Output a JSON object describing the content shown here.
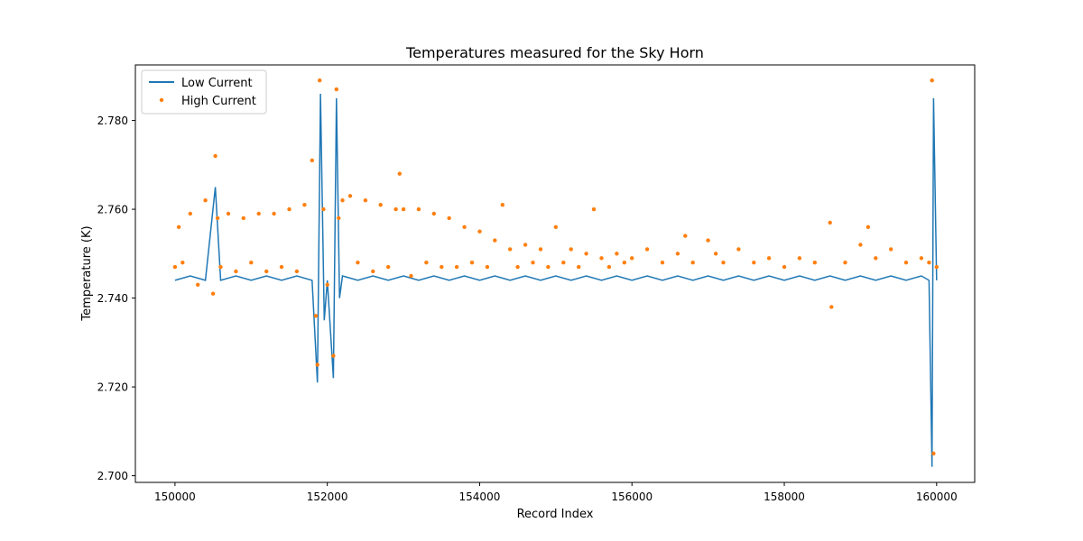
{
  "chart_data": {
    "type": "line",
    "title": "Temperatures measured for the Sky Horn",
    "xlabel": "Record Index",
    "ylabel": "Temperature (K)",
    "xlim": [
      149480,
      160500
    ],
    "ylim": [
      2.6985,
      2.7925
    ],
    "x_ticks": [
      150000,
      152000,
      154000,
      156000,
      158000,
      160000
    ],
    "x_tick_labels": [
      "150000",
      "152000",
      "154000",
      "156000",
      "158000",
      "160000"
    ],
    "y_ticks": [
      2.7,
      2.72,
      2.74,
      2.76,
      2.78
    ],
    "y_tick_labels": [
      "2.700",
      "2.720",
      "2.740",
      "2.760",
      "2.780"
    ],
    "grid": false,
    "legend_position": "top-left",
    "series": [
      {
        "name": "Low Current",
        "kind": "line",
        "color": "#1f77b4",
        "x": [
          150000,
          150200,
          150400,
          150530,
          150600,
          150800,
          151000,
          151200,
          151400,
          151600,
          151800,
          151870,
          151910,
          151960,
          152000,
          152080,
          152120,
          152160,
          152200,
          152400,
          152600,
          152800,
          153000,
          153200,
          153400,
          153600,
          153800,
          154000,
          154200,
          154400,
          154600,
          154800,
          155000,
          155200,
          155400,
          155600,
          155800,
          156000,
          156200,
          156400,
          156600,
          156800,
          157000,
          157200,
          157400,
          157600,
          157800,
          158000,
          158200,
          158400,
          158600,
          158800,
          159000,
          159200,
          159400,
          159600,
          159800,
          159900,
          159940,
          159960,
          160000
        ],
        "y": [
          2.744,
          2.745,
          2.744,
          2.765,
          2.744,
          2.745,
          2.744,
          2.745,
          2.744,
          2.745,
          2.744,
          2.721,
          2.786,
          2.735,
          2.744,
          2.722,
          2.785,
          2.74,
          2.745,
          2.744,
          2.745,
          2.744,
          2.745,
          2.744,
          2.745,
          2.744,
          2.745,
          2.744,
          2.745,
          2.744,
          2.745,
          2.744,
          2.745,
          2.744,
          2.745,
          2.744,
          2.745,
          2.744,
          2.745,
          2.744,
          2.745,
          2.744,
          2.745,
          2.744,
          2.745,
          2.744,
          2.745,
          2.744,
          2.745,
          2.744,
          2.745,
          2.744,
          2.745,
          2.744,
          2.745,
          2.744,
          2.745,
          2.744,
          2.702,
          2.785,
          2.744
        ]
      },
      {
        "name": "High Current",
        "kind": "scatter",
        "color": "#ff7f0e",
        "x": [
          150000,
          150050,
          150100,
          150200,
          150300,
          150400,
          150500,
          150530,
          150560,
          150600,
          150700,
          150800,
          150900,
          151000,
          151100,
          151200,
          151300,
          151400,
          151500,
          151600,
          151700,
          151800,
          151850,
          151870,
          151900,
          151950,
          152000,
          152080,
          152120,
          152150,
          152200,
          152300,
          152400,
          152500,
          152600,
          152700,
          152800,
          152900,
          152950,
          153000,
          153100,
          153200,
          153300,
          153400,
          153500,
          153600,
          153700,
          153800,
          153900,
          154000,
          154100,
          154200,
          154300,
          154400,
          154500,
          154600,
          154700,
          154800,
          154900,
          155000,
          155100,
          155200,
          155300,
          155400,
          155500,
          155600,
          155700,
          155800,
          155900,
          156000,
          156200,
          156400,
          156600,
          156700,
          156800,
          157000,
          157100,
          157200,
          157400,
          157600,
          157800,
          158000,
          158200,
          158400,
          158600,
          158620,
          158800,
          159000,
          159100,
          159200,
          159400,
          159600,
          159800,
          159900,
          159940,
          159960,
          160000
        ],
        "y": [
          2.747,
          2.756,
          2.748,
          2.759,
          2.743,
          2.762,
          2.741,
          2.772,
          2.758,
          2.747,
          2.759,
          2.746,
          2.758,
          2.748,
          2.759,
          2.746,
          2.759,
          2.747,
          2.76,
          2.746,
          2.761,
          2.771,
          2.736,
          2.725,
          2.789,
          2.76,
          2.743,
          2.727,
          2.787,
          2.758,
          2.762,
          2.763,
          2.748,
          2.762,
          2.746,
          2.761,
          2.747,
          2.76,
          2.768,
          2.76,
          2.745,
          2.76,
          2.748,
          2.759,
          2.747,
          2.758,
          2.747,
          2.756,
          2.748,
          2.755,
          2.747,
          2.753,
          2.761,
          2.751,
          2.747,
          2.752,
          2.748,
          2.751,
          2.747,
          2.756,
          2.748,
          2.751,
          2.747,
          2.75,
          2.76,
          2.749,
          2.747,
          2.75,
          2.748,
          2.749,
          2.751,
          2.748,
          2.75,
          2.754,
          2.748,
          2.753,
          2.75,
          2.748,
          2.751,
          2.748,
          2.749,
          2.747,
          2.749,
          2.748,
          2.757,
          2.738,
          2.748,
          2.752,
          2.756,
          2.749,
          2.751,
          2.748,
          2.749,
          2.748,
          2.789,
          2.705,
          2.747
        ]
      }
    ]
  }
}
